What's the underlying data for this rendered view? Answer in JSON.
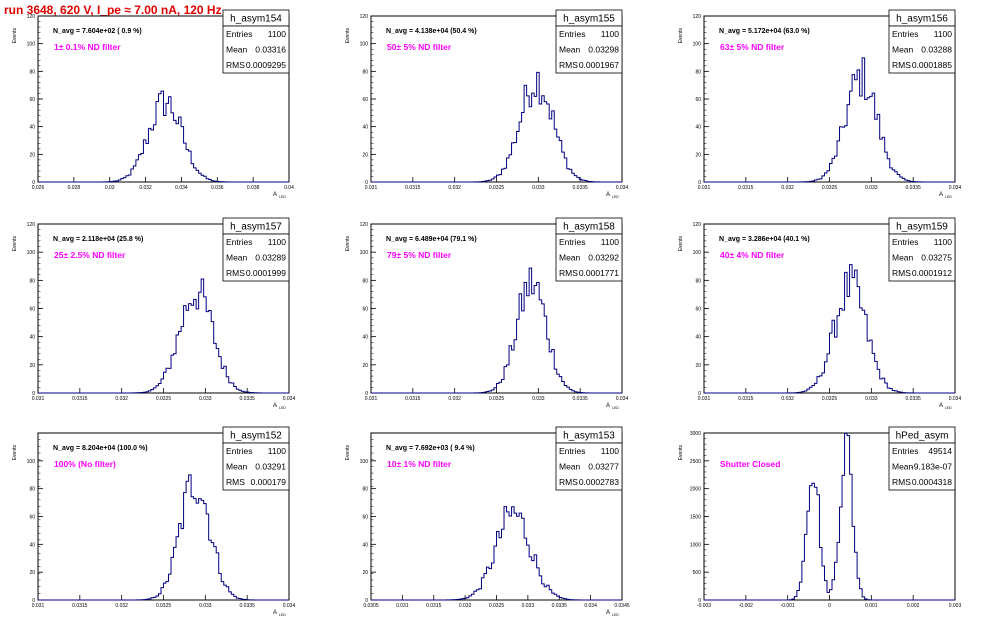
{
  "title": "run 3648,   620 V, I_pe ≈ 7.00 nA, 120 Hz",
  "colors": {
    "title": "#e00000",
    "annotation": "#ff00ff",
    "histogram": "#000080",
    "frame": "#000000"
  },
  "chart_data": [
    {
      "type": "histogram",
      "name": "h_asym154",
      "stats": {
        "entries_label": "Entries",
        "entries": "1100",
        "mean_label": "Mean",
        "mean": "0.03316",
        "rms_label": "RMS",
        "rms": "0.0009295"
      },
      "navg": "N_avg = 7.604e+02 ( 0.9 %)",
      "annotation": "1± 0.1% ND filter",
      "ylabel": "Events",
      "xlabel": "A",
      "xlabel_sub": "LED",
      "xlim": [
        0.026,
        0.04
      ],
      "xticks": [
        "0.026",
        "0.028",
        "0.03",
        "0.032",
        "0.034",
        "0.036",
        "0.038",
        "0.04"
      ],
      "ylim": [
        0,
        120
      ],
      "yticks": [
        "0",
        "20",
        "40",
        "60",
        "80",
        "100",
        "120"
      ],
      "peak": {
        "center": 0.0331,
        "sigma": 0.00093,
        "height": 58
      }
    },
    {
      "type": "histogram",
      "name": "h_asym155",
      "stats": {
        "entries_label": "Entries",
        "entries": "1100",
        "mean_label": "Mean",
        "mean": "0.03298",
        "rms_label": "RMS",
        "rms": "0.0001967"
      },
      "navg": "N_avg = 4.138e+04 (50.4 %)",
      "annotation": "50± 5% ND filter",
      "ylabel": "Events",
      "xlabel": "A",
      "xlabel_sub": "LED",
      "xlim": [
        0.031,
        0.034
      ],
      "xticks": [
        "0.031",
        "0.0315",
        "0.032",
        "0.0325",
        "0.033",
        "0.0335",
        "0.034"
      ],
      "ylim": [
        0,
        120
      ],
      "yticks": [
        "0",
        "20",
        "40",
        "60",
        "80",
        "100",
        "120"
      ],
      "peak": {
        "center": 0.03298,
        "sigma": 0.000197,
        "height": 74
      }
    },
    {
      "type": "histogram",
      "name": "h_asym156",
      "stats": {
        "entries_label": "Entries",
        "entries": "1100",
        "mean_label": "Mean",
        "mean": "0.03288",
        "rms_label": "RMS",
        "rms": "0.0001885"
      },
      "navg": "N_avg = 5.172e+04 (63.0 %)",
      "annotation": "63± 5% ND filter",
      "ylabel": "Events",
      "xlabel": "A",
      "xlabel_sub": "LED",
      "xlim": [
        0.031,
        0.034
      ],
      "xticks": [
        "0.031",
        "0.0315",
        "0.032",
        "0.0325",
        "0.033",
        "0.0335",
        "0.034"
      ],
      "ylim": [
        0,
        120
      ],
      "yticks": [
        "0",
        "20",
        "40",
        "60",
        "80",
        "100",
        "120"
      ],
      "peak": {
        "center": 0.03288,
        "sigma": 0.000189,
        "height": 76
      }
    },
    {
      "type": "histogram",
      "name": "h_asym157",
      "stats": {
        "entries_label": "Entries",
        "entries": "1100",
        "mean_label": "Mean",
        "mean": "0.03289",
        "rms_label": "RMS",
        "rms": "0.0001999"
      },
      "navg": "N_avg = 2.118e+04 (25.8 %)",
      "annotation": "25± 2.5% ND filter",
      "ylabel": "Events",
      "xlabel": "A",
      "xlabel_sub": "LED",
      "xlim": [
        0.031,
        0.034
      ],
      "xticks": [
        "0.031",
        "0.0315",
        "0.032",
        "0.0325",
        "0.033",
        "0.0335",
        "0.034"
      ],
      "ylim": [
        0,
        120
      ],
      "yticks": [
        "0",
        "20",
        "40",
        "60",
        "80",
        "100",
        "120"
      ],
      "peak": {
        "center": 0.03289,
        "sigma": 0.0002,
        "height": 72
      }
    },
    {
      "type": "histogram",
      "name": "h_asym158",
      "stats": {
        "entries_label": "Entries",
        "entries": "1100",
        "mean_label": "Mean",
        "mean": "0.03292",
        "rms_label": "RMS",
        "rms": "0.0001771"
      },
      "navg": "N_avg = 6.489e+04 (79.1 %)",
      "annotation": "79± 5% ND filter",
      "ylabel": "Events",
      "xlabel": "A",
      "xlabel_sub": "LED",
      "xlim": [
        0.031,
        0.034
      ],
      "xticks": [
        "0.031",
        "0.0315",
        "0.032",
        "0.0325",
        "0.033",
        "0.0335",
        "0.034"
      ],
      "ylim": [
        0,
        120
      ],
      "yticks": [
        "0",
        "20",
        "40",
        "60",
        "80",
        "100",
        "120"
      ],
      "peak": {
        "center": 0.03292,
        "sigma": 0.000177,
        "height": 78
      }
    },
    {
      "type": "histogram",
      "name": "h_asym159",
      "stats": {
        "entries_label": "Entries",
        "entries": "1100",
        "mean_label": "Mean",
        "mean": "0.03275",
        "rms_label": "RMS",
        "rms": "0.0001912"
      },
      "navg": "N_avg = 3.286e+04 (40.1 %)",
      "annotation": "40± 4% ND filter",
      "ylabel": "Events",
      "xlabel": "A",
      "xlabel_sub": "LED",
      "xlim": [
        0.031,
        0.034
      ],
      "xticks": [
        "0.031",
        "0.0315",
        "0.032",
        "0.0325",
        "0.033",
        "0.0335",
        "0.034"
      ],
      "ylim": [
        0,
        120
      ],
      "yticks": [
        "0",
        "20",
        "40",
        "60",
        "80",
        "100",
        "120"
      ],
      "peak": {
        "center": 0.03275,
        "sigma": 0.000191,
        "height": 76
      }
    },
    {
      "type": "histogram",
      "name": "h_asym152",
      "stats": {
        "entries_label": "Entries",
        "entries": "1100",
        "mean_label": "Mean",
        "mean": "0.03291",
        "rms_label": "RMS",
        "rms": "0.000179"
      },
      "navg": "N_avg = 8.204e+04 (100.0 %)",
      "annotation": "100% (No filter)",
      "ylabel": "Events",
      "xlabel": "A",
      "xlabel_sub": "LED",
      "xlim": [
        0.031,
        0.034
      ],
      "xticks": [
        "0.031",
        "0.0315",
        "0.032",
        "0.0325",
        "0.033",
        "0.0335",
        "0.034"
      ],
      "ylim": [
        0,
        120
      ],
      "yticks": [
        "0",
        "20",
        "40",
        "60",
        "80",
        "100"
      ],
      "peak": {
        "center": 0.03288,
        "sigma": 0.000179,
        "height": 86
      }
    },
    {
      "type": "histogram",
      "name": "h_asym153",
      "stats": {
        "entries_label": "Entries",
        "entries": "1100",
        "mean_label": "Mean",
        "mean": "0.03277",
        "rms_label": "RMS",
        "rms": "0.0002783"
      },
      "navg": "N_avg = 7.692e+03 ( 9.4 %)",
      "annotation": "10± 1% ND filter",
      "ylabel": "Events",
      "xlabel": "A",
      "xlabel_sub": "LED",
      "xlim": [
        0.0305,
        0.0345
      ],
      "xticks": [
        "0.0305",
        "0.031",
        "0.0315",
        "0.032",
        "0.0325",
        "0.033",
        "0.0335",
        "0.034",
        "0.0345"
      ],
      "ylim": [
        0,
        120
      ],
      "yticks": [
        "0",
        "20",
        "40",
        "60",
        "80",
        "100"
      ],
      "peak": {
        "center": 0.03277,
        "sigma": 0.000278,
        "height": 62
      }
    },
    {
      "type": "histogram",
      "name": "hPed_asym",
      "stats": {
        "entries_label": "Entries",
        "entries": "49514",
        "mean_label": "Mean",
        "mean": "-9.183e-07",
        "rms_label": "RMS",
        "rms": "0.0004318"
      },
      "navg": "",
      "annotation": "Shutter Closed",
      "ylabel": "Events",
      "xlabel": "",
      "xlabel_sub": "",
      "xlim": [
        -0.003,
        0.003
      ],
      "xticks": [
        "-0.003",
        "-0.002",
        "-0.001",
        "0",
        "0.001",
        "0.002",
        "0.003"
      ],
      "ylim": [
        0,
        3000
      ],
      "yticks": [
        "0",
        "500",
        "1000",
        "1500",
        "2000",
        "2500",
        "3000"
      ],
      "double_peak": {
        "centers": [
          -0.0004,
          0.0004
        ],
        "sigma": 0.00015,
        "heights": [
          2450,
          2800
        ]
      }
    }
  ]
}
